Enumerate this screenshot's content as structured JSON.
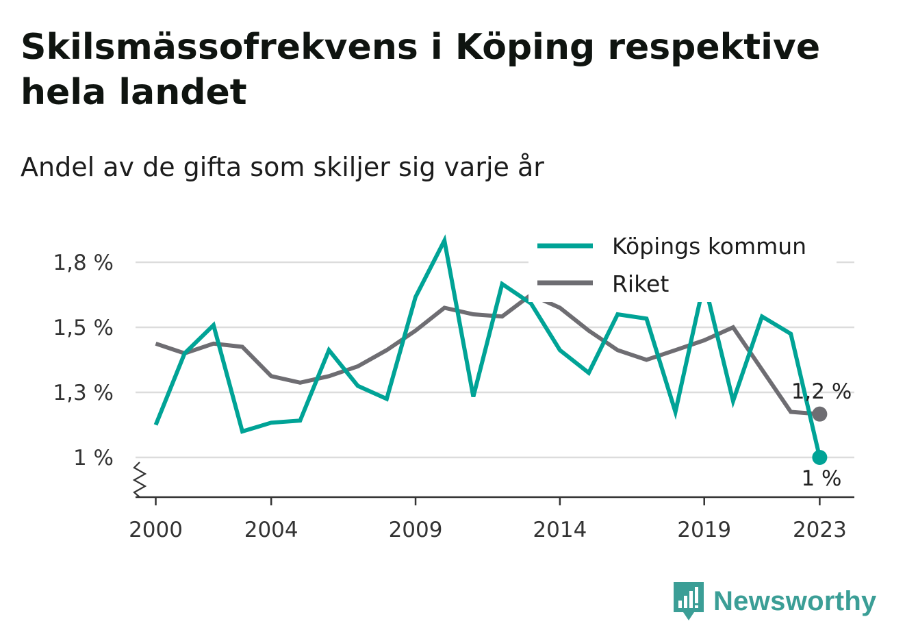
{
  "header": {
    "title": "Skilsmässofrekvens i Köping respektive hela landet",
    "subtitle": "Andel av de gifta som skiljer sig varje år"
  },
  "legend": {
    "items": [
      {
        "label": "Köpings kommun",
        "color": "#00a396"
      },
      {
        "label": "Riket",
        "color": "#6e6d72"
      }
    ]
  },
  "end_labels": {
    "series_0": "1 %",
    "series_1": "1,2 %"
  },
  "brand": {
    "name": "Newsworthy",
    "icon": "newsworthy-logo-icon",
    "color": "#3b9e96"
  },
  "chart_data": {
    "type": "line",
    "title": "Skilsmässofrekvens i Köping respektive hela landet",
    "subtitle": "Andel av de gifta som skiljer sig varje år",
    "x": [
      2000,
      2001,
      2002,
      2003,
      2004,
      2005,
      2006,
      2007,
      2008,
      2009,
      2010,
      2011,
      2012,
      2013,
      2014,
      2015,
      2016,
      2017,
      2018,
      2019,
      2020,
      2021,
      2022,
      2023
    ],
    "series": [
      {
        "name": "Köpings kommun",
        "color": "#00a396",
        "values": [
          1.15,
          1.42,
          1.51,
          1.12,
          1.16,
          1.17,
          1.43,
          1.32,
          1.27,
          1.64,
          1.9,
          1.28,
          1.7,
          1.61,
          1.43,
          1.36,
          1.56,
          1.54,
          1.21,
          1.71,
          1.26,
          1.55,
          1.48,
          1.0
        ]
      },
      {
        "name": "Riket",
        "color": "#6e6d72",
        "values": [
          1.45,
          1.42,
          1.45,
          1.44,
          1.35,
          1.33,
          1.35,
          1.38,
          1.43,
          1.49,
          1.59,
          1.56,
          1.55,
          1.65,
          1.59,
          1.49,
          1.43,
          1.4,
          1.43,
          1.46,
          1.5,
          1.37,
          1.21,
          1.2
        ]
      }
    ],
    "y_ticks": [
      1.0,
      1.3,
      1.5,
      1.8
    ],
    "y_tick_labels": [
      "1 %",
      "1,3 %",
      "1,5 %",
      "1,8 %"
    ],
    "ylim": [
      0.88,
      1.8
    ],
    "x_ticks": [
      2000,
      2004,
      2009,
      2014,
      2019,
      2023
    ],
    "x_tick_labels": [
      "2000",
      "2004",
      "2009",
      "2014",
      "2019",
      "2023"
    ],
    "xlim": [
      1999.3,
      2024.2
    ],
    "grid": "horizontal",
    "legend_position": "top-right",
    "y_axis_break": true,
    "end_labels": [
      "1 %",
      "1,2 %"
    ]
  }
}
